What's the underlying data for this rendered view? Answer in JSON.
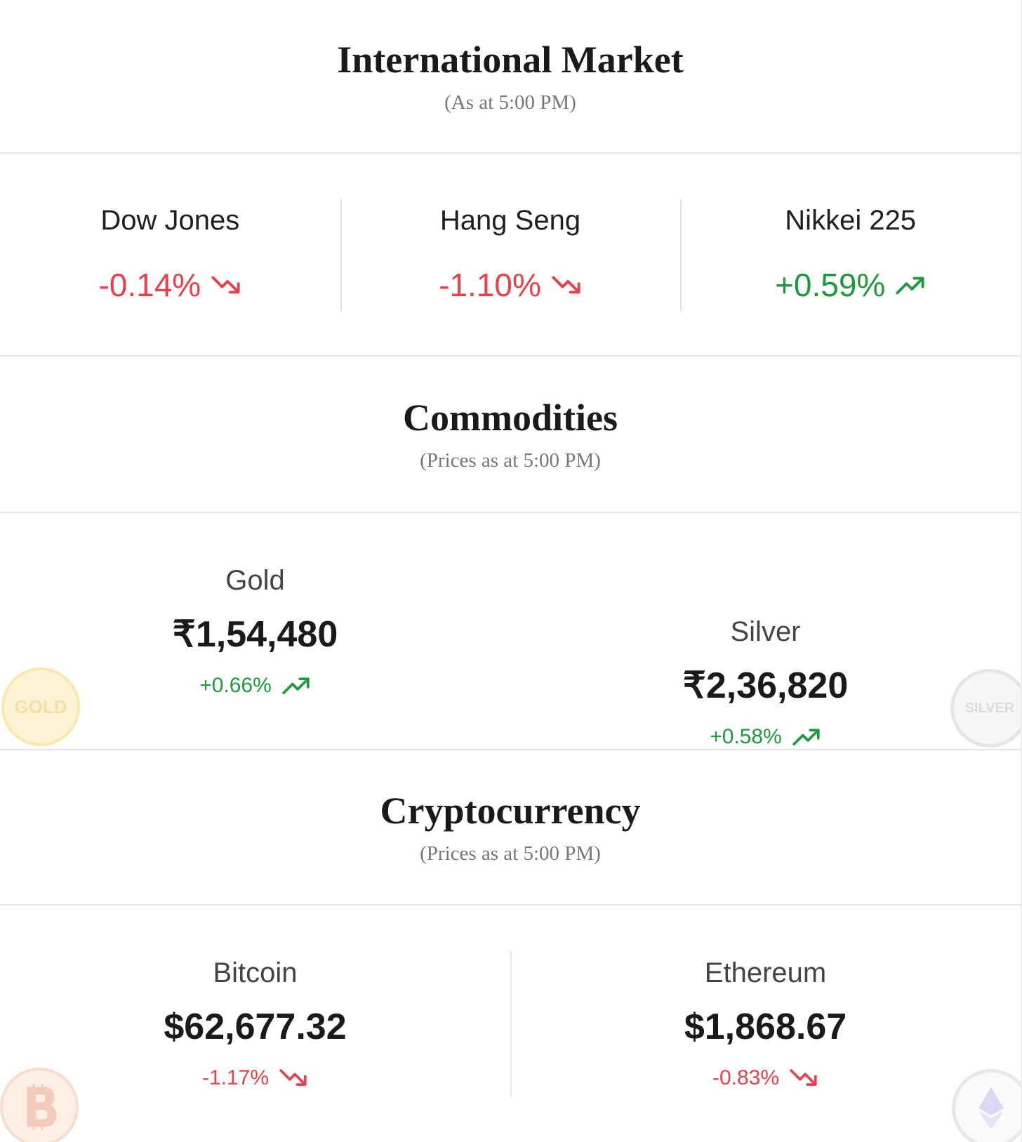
{
  "international": {
    "title": "International Market",
    "subtitle": "(As at 5:00 PM)",
    "items": [
      {
        "name": "Dow Jones",
        "change": "-0.14%",
        "direction": "down"
      },
      {
        "name": "Hang Seng",
        "change": "-1.10%",
        "direction": "down"
      },
      {
        "name": "Nikkei 225",
        "change": "+0.59%",
        "direction": "up"
      }
    ]
  },
  "commodities": {
    "title": "Commodities",
    "subtitle": "(Prices as at 5:00 PM)",
    "items": [
      {
        "name": "Gold",
        "price": "₹1,54,480",
        "change": "+0.66%",
        "direction": "up",
        "badge": "GOLD"
      },
      {
        "name": "Silver",
        "price": "₹2,36,820",
        "change": "+0.58%",
        "direction": "up",
        "badge": "SILVER"
      }
    ]
  },
  "crypto": {
    "title": "Cryptocurrency",
    "subtitle": "(Prices as at 5:00 PM)",
    "items": [
      {
        "name": "Bitcoin",
        "price": "$62,677.32",
        "change": "-1.17%",
        "direction": "down"
      },
      {
        "name": "Ethereum",
        "price": "$1,868.67",
        "change": "-0.83%",
        "direction": "down"
      }
    ]
  }
}
